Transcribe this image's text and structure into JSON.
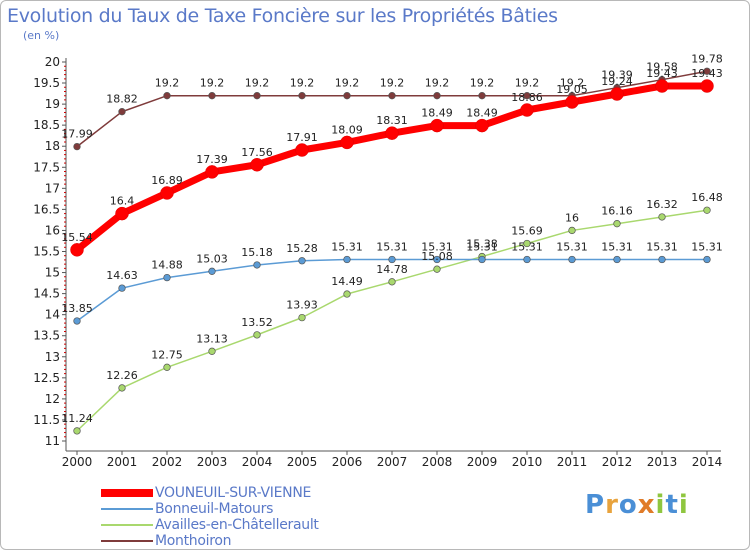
{
  "title": "Evolution du Taux de Taxe Foncière sur les Propriétés Bâties",
  "unit_label": "(en %)",
  "logo": {
    "text": "Proxiti",
    "colors": [
      "#4a8fd6",
      "#e8a33d",
      "#4a8fd6",
      "#e07b28",
      "#8fc63f",
      "#4a8fd6",
      "#8fc63f"
    ]
  },
  "chart_data": {
    "type": "line",
    "title": "Evolution du Taux de Taxe Foncière sur les Propriétés Bâties",
    "ylabel": "(en %)",
    "xlabel": "",
    "x": [
      "2000",
      "2001",
      "2002",
      "2003",
      "2004",
      "2005",
      "2006",
      "2007",
      "2008",
      "2009",
      "2010",
      "2011",
      "2012",
      "2013",
      "2014"
    ],
    "ylim": [
      11,
      20
    ],
    "yticks": [
      "11",
      "11.5",
      "12",
      "12.5",
      "13",
      "13.5",
      "14",
      "14.5",
      "15",
      "15.5",
      "16",
      "16.5",
      "17",
      "17.5",
      "18",
      "18.5",
      "19",
      "19.5",
      "20"
    ],
    "grid": false,
    "legend_position": "bottom-left",
    "series": [
      {
        "name": "VOUNEUIL-SUR-VIENNE",
        "color": "#ff0000",
        "values": [
          15.54,
          16.4,
          16.89,
          17.39,
          17.56,
          17.91,
          18.09,
          18.31,
          18.49,
          18.49,
          18.86,
          19.05,
          19.24,
          19.43,
          19.43
        ],
        "labels": [
          "15.54",
          "16.4",
          "16.89",
          "17.39",
          "17.56",
          "17.91",
          "18.09",
          "18.31",
          "18.49",
          "18.49",
          "18.86",
          "19.05",
          "19.24",
          "19.43",
          "19.43"
        ]
      },
      {
        "name": "Bonneuil-Matours",
        "color": "#5b9bd5",
        "values": [
          13.85,
          14.63,
          14.88,
          15.03,
          15.18,
          15.28,
          15.31,
          15.31,
          15.31,
          15.31,
          15.31,
          15.31,
          15.31,
          15.31,
          15.31
        ],
        "labels": [
          "13.85",
          "14.63",
          "14.88",
          "15.03",
          "15.18",
          "15.28",
          "15.31",
          "15.31",
          "15.31",
          "15.31",
          "15.31",
          "15.31",
          "15.31",
          "15.31",
          "15.31"
        ]
      },
      {
        "name": "Availles-en-Châtellerault",
        "color": "#a9d86e",
        "values": [
          11.24,
          12.26,
          12.75,
          13.13,
          13.52,
          13.93,
          14.49,
          14.78,
          15.08,
          15.38,
          15.69,
          16,
          16.16,
          16.32,
          16.48
        ],
        "labels": [
          "11.24",
          "12.26",
          "12.75",
          "13.13",
          "13.52",
          "13.93",
          "14.49",
          "14.78",
          "15.08",
          "15.38",
          "15.69",
          "16",
          "16.16",
          "16.32",
          "16.48"
        ]
      },
      {
        "name": "Monthoiron",
        "color": "#7f3b3b",
        "values": [
          17.99,
          18.82,
          19.2,
          19.2,
          19.2,
          19.2,
          19.2,
          19.2,
          19.2,
          19.2,
          19.2,
          19.2,
          19.39,
          19.58,
          19.78
        ],
        "labels": [
          "17.99",
          "18.82",
          "19.2",
          "19.2",
          "19.2",
          "19.2",
          "19.2",
          "19.2",
          "19.2",
          "19.2",
          "19.2",
          "19.2",
          "19.39",
          "19.58",
          "19.78"
        ]
      }
    ]
  }
}
